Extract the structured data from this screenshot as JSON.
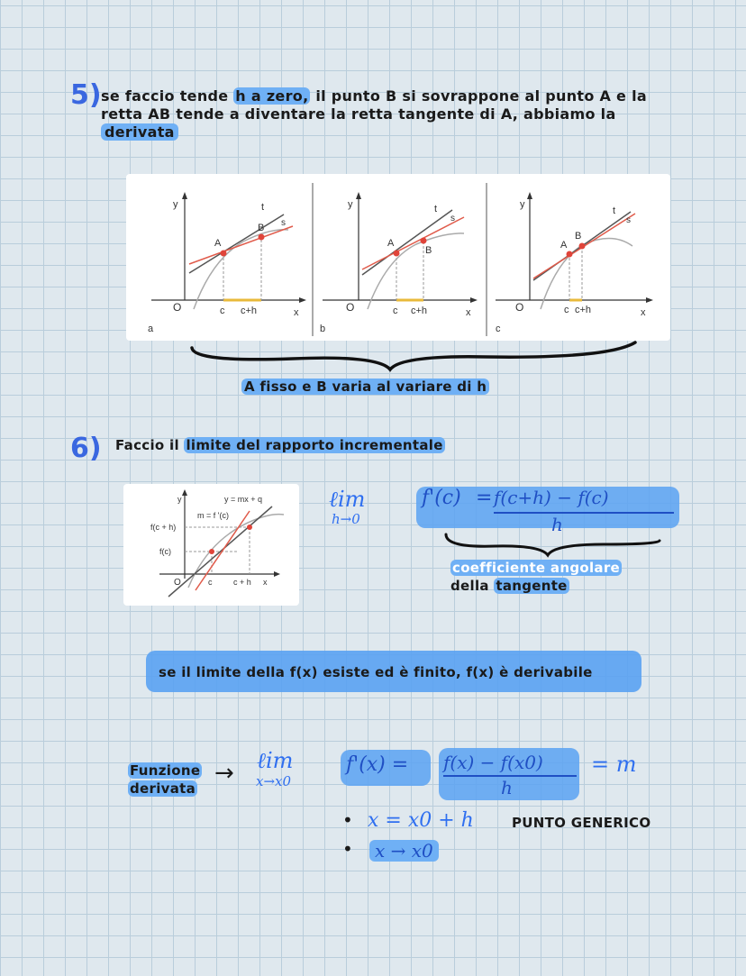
{
  "s5": {
    "num": "5)",
    "line1_a": "se faccio tende ",
    "line1_h": "h a zero,",
    "line1_b": " il punto B si sovrappone al punto A e la",
    "line2": "retta AB tende a diventare la retta tangente di A, abbiamo la",
    "line3": "derivata"
  },
  "fig1": {
    "panels": [
      {
        "letter": "a",
        "y": "y",
        "o": "O",
        "c": "c",
        "ch": "c+h",
        "x": "x",
        "A": "A",
        "B": "B",
        "t": "t",
        "s": "s"
      },
      {
        "letter": "b",
        "y": "y",
        "o": "O",
        "c": "c",
        "ch": "c+h",
        "x": "x",
        "A": "A",
        "B": "B",
        "t": "t",
        "s": "s"
      },
      {
        "letter": "c",
        "y": "y",
        "o": "O",
        "c": "c",
        "ch": "c+h",
        "x": "x",
        "A": "A",
        "B": "B",
        "t": "t",
        "s": "s"
      }
    ],
    "caption": "A fisso e B varia al variare di h"
  },
  "s6": {
    "num": "6)",
    "text": "Faccio il ",
    "hl": "limite del rapporto incrementale"
  },
  "fig2": {
    "y": "y",
    "eq": "y = mx + q",
    "m": "m = f '(c)",
    "fch": "f(c + h)",
    "fc": "f(c)",
    "o": "O",
    "c": "c",
    "ch": "c + h",
    "x": "x"
  },
  "formula1": {
    "lim": "ℓim",
    "sub": "h→0",
    "lhs": "f'(c)",
    "eq": "=",
    "num": "f(c+h) − f(c)",
    "den": "h",
    "brace_label1": "coefficiente angolare",
    "brace_label2a": "della ",
    "brace_label2b": "tangente"
  },
  "note": "se il limite della f(x) esiste ed è finito, f(x) è derivabile",
  "formula2": {
    "label1": "Funzione",
    "label2": "derivata",
    "arrow": "→",
    "lim": "ℓim",
    "sub": "x→x0",
    "lhs": "f'(x) =",
    "num": "f(x) − f(x0)",
    "den": "h",
    "rhs": "= m",
    "b1": "x = x0 + h",
    "b1_label": "PUNTO GENERICO",
    "b2": "x → x0"
  }
}
